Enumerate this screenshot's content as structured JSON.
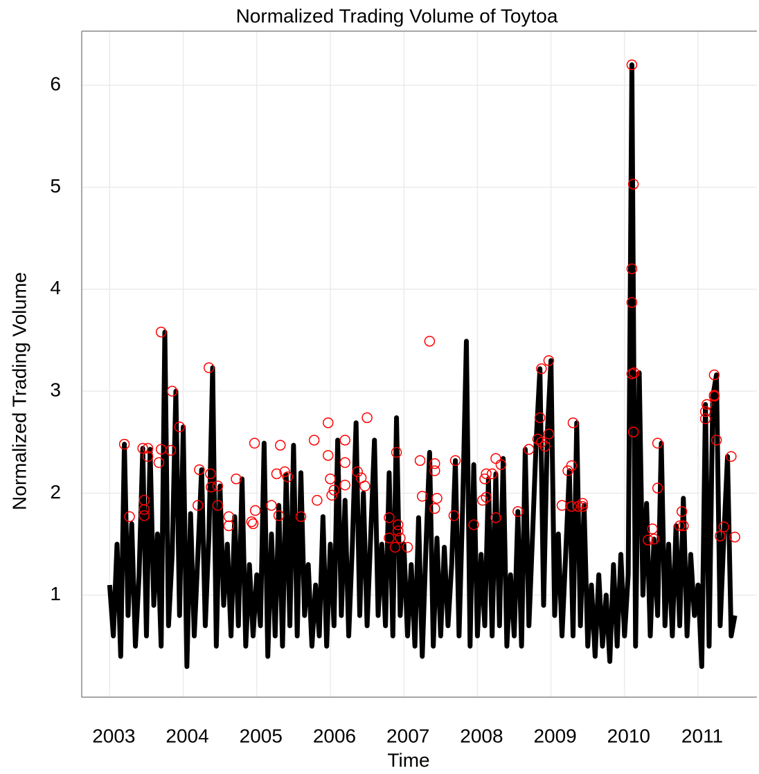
{
  "chart_data": {
    "type": "line",
    "title": "Normalized Trading Volume of Toytoa",
    "xlabel": "Time",
    "ylabel": "Normalized Trading Volume",
    "color": "#000000",
    "x": [
      2003,
      2003.05,
      2003.1,
      2003.15,
      2003.2,
      2003.25,
      2003.3,
      2003.35,
      2003.4,
      2003.45,
      2003.5,
      2003.55,
      2003.6,
      2003.65,
      2003.7,
      2003.75,
      2003.8,
      2003.85,
      2003.9,
      2003.95,
      2004,
      2004.05,
      2004.1,
      2004.15,
      2004.2,
      2004.25,
      2004.3,
      2004.35,
      2004.4,
      2004.45,
      2004.5,
      2004.55,
      2004.6,
      2004.65,
      2004.7,
      2004.75,
      2004.8,
      2004.85,
      2004.9,
      2004.95,
      2005,
      2005.05,
      2005.1,
      2005.15,
      2005.2,
      2005.25,
      2005.3,
      2005.35,
      2005.4,
      2005.45,
      2005.5,
      2005.55,
      2005.6,
      2005.65,
      2005.7,
      2005.75,
      2005.8,
      2005.85,
      2005.9,
      2005.95,
      2006,
      2006.05,
      2006.1,
      2006.15,
      2006.2,
      2006.25,
      2006.3,
      2006.35,
      2006.4,
      2006.45,
      2006.5,
      2006.55,
      2006.6,
      2006.65,
      2006.7,
      2006.75,
      2006.8,
      2006.85,
      2006.9,
      2006.95,
      2007,
      2007.05,
      2007.1,
      2007.15,
      2007.2,
      2007.25,
      2007.3,
      2007.35,
      2007.4,
      2007.45,
      2007.5,
      2007.55,
      2007.6,
      2007.65,
      2007.7,
      2007.75,
      2007.8,
      2007.85,
      2007.9,
      2007.95,
      2008,
      2008.05,
      2008.1,
      2008.15,
      2008.2,
      2008.25,
      2008.3,
      2008.35,
      2008.4,
      2008.45,
      2008.5,
      2008.55,
      2008.6,
      2008.65,
      2008.7,
      2008.75,
      2008.8,
      2008.85,
      2008.9,
      2008.95,
      2009,
      2009.05,
      2009.1,
      2009.15,
      2009.2,
      2009.25,
      2009.3,
      2009.35,
      2009.4,
      2009.45,
      2009.5,
      2009.55,
      2009.6,
      2009.65,
      2009.7,
      2009.75,
      2009.8,
      2009.85,
      2009.9,
      2009.95,
      2010,
      2010.05,
      2010.1,
      2010.15,
      2010.2,
      2010.25,
      2010.3,
      2010.35,
      2010.4,
      2010.45,
      2010.5,
      2010.55,
      2010.6,
      2010.65,
      2010.7,
      2010.75,
      2010.8,
      2010.85,
      2010.9,
      2010.95,
      2011,
      2011.05,
      2011.1,
      2011.15,
      2011.2,
      2011.25,
      2011.3,
      2011.35,
      2011.4,
      2011.45,
      2011.5
    ],
    "values": [
      1.1,
      0.6,
      1.5,
      0.4,
      2.48,
      0.8,
      1.7,
      0.5,
      1.2,
      2.44,
      0.6,
      2.43,
      0.9,
      1.6,
      0.5,
      3.58,
      0.7,
      1.4,
      3.0,
      0.8,
      2.65,
      0.3,
      1.8,
      0.6,
      1.4,
      2.23,
      0.7,
      1.6,
      3.23,
      0.5,
      2.07,
      0.9,
      1.5,
      0.6,
      1.77,
      0.7,
      2.14,
      0.5,
      1.3,
      0.6,
      1.2,
      0.7,
      2.49,
      0.4,
      1.6,
      0.6,
      1.88,
      0.5,
      2.18,
      0.7,
      2.47,
      0.6,
      2.2,
      0.8,
      1.3,
      0.5,
      1.1,
      0.6,
      1.77,
      0.5,
      1.5,
      0.7,
      2.52,
      0.8,
      1.93,
      0.6,
      1.5,
      2.69,
      0.8,
      2.0,
      0.7,
      1.6,
      2.52,
      0.8,
      1.5,
      0.7,
      2.2,
      0.6,
      2.74,
      0.8,
      1.5,
      0.6,
      1.3,
      0.5,
      1.76,
      0.4,
      1.47,
      2.4,
      0.5,
      1.56,
      0.6,
      1.47,
      0.7,
      1.3,
      2.32,
      0.6,
      1.9,
      3.49,
      0.5,
      2.28,
      0.6,
      1.4,
      0.7,
      2.14,
      0.6,
      2.19,
      0.7,
      2.34,
      0.5,
      1.2,
      0.6,
      1.82,
      0.5,
      2.43,
      0.7,
      1.6,
      2.53,
      3.22,
      0.9,
      2.58,
      3.3,
      0.8,
      1.6,
      0.6,
      1.4,
      2.22,
      0.6,
      2.69,
      0.7,
      1.88,
      0.5,
      1.1,
      0.4,
      1.2,
      0.5,
      1.0,
      0.35,
      1.3,
      0.5,
      1.4,
      0.6,
      1.2,
      6.2,
      0.5,
      3.18,
      1.0,
      1.9,
      0.6,
      1.55,
      0.8,
      2.49,
      0.7,
      1.5,
      0.6,
      1.68,
      0.7,
      1.95,
      0.6,
      1.4,
      0.8,
      1.1,
      0.3,
      2.87,
      0.5,
      2.95,
      3.16,
      0.7,
      1.57,
      2.36,
      0.6,
      0.8
    ],
    "highlights": {
      "color": "#ff0000",
      "x": [
        2003.2,
        2003.27,
        2003.45,
        2003.47,
        2003.47,
        2003.47,
        2003.52,
        2003.52,
        2003.67,
        2003.7,
        2003.7,
        2003.85,
        2003.83,
        2003.95,
        2004.2,
        2004.22,
        2004.35,
        2004.37,
        2004.38,
        2004.47,
        2004.47,
        2004.62,
        2004.62,
        2004.72,
        2004.93,
        2004.95,
        2004.97,
        2004.98,
        2005.2,
        2005.27,
        2005.3,
        2005.32,
        2005.38,
        2005.42,
        2005.6,
        2005.78,
        2005.82,
        2005.97,
        2005.97,
        2006,
        2006.02,
        2006.05,
        2006.2,
        2006.2,
        2006.2,
        2006.37,
        2006.42,
        2006.47,
        2006.5,
        2006.8,
        2006.8,
        2006.9,
        2006.88,
        2006.92,
        2006.92,
        2006.95,
        2007.05,
        2007.22,
        2007.25,
        2007.35,
        2007.42,
        2007.42,
        2007.45,
        2007.42,
        2007.7,
        2007.68,
        2007.95,
        2008.07,
        2008.1,
        2008.12,
        2008.12,
        2008.2,
        2008.25,
        2008.25,
        2008.32,
        2008.55,
        2008.7,
        2008.82,
        2008.85,
        2008.87,
        2008.87,
        2008.92,
        2008.97,
        2008.97,
        2009.15,
        2009.23,
        2009.28,
        2009.28,
        2009.3,
        2009.37,
        2009.43,
        2009.43,
        2010.1,
        2010.12,
        2010.1,
        2010.1,
        2010.1,
        2010.13,
        2010.12,
        2010.32,
        2010.38,
        2010.4,
        2010.45,
        2010.45,
        2010.75,
        2010.78,
        2010.8,
        2011.1,
        2011.1,
        2011.12,
        2011.22,
        2011.22,
        2011.22,
        2011.25,
        2011.3,
        2011.35,
        2011.45,
        2011.5
      ],
      "values": [
        2.48,
        1.77,
        2.44,
        1.93,
        1.84,
        1.78,
        2.44,
        2.36,
        2.3,
        2.43,
        3.58,
        3.0,
        2.42,
        2.65,
        1.88,
        2.23,
        3.23,
        2.19,
        2.06,
        2.07,
        1.88,
        1.77,
        1.68,
        2.14,
        1.72,
        1.7,
        2.49,
        1.83,
        1.88,
        2.19,
        1.78,
        2.47,
        2.21,
        2.16,
        1.77,
        2.52,
        1.93,
        2.69,
        2.37,
        2.14,
        1.98,
        2.03,
        2.52,
        2.3,
        2.08,
        2.21,
        2.15,
        2.07,
        2.74,
        1.76,
        1.56,
        2.4,
        1.47,
        1.69,
        1.63,
        1.56,
        1.47,
        2.32,
        1.97,
        3.49,
        2.29,
        2.22,
        1.95,
        1.85,
        2.32,
        1.78,
        1.69,
        1.93,
        2.14,
        2.19,
        1.96,
        2.19,
        2.34,
        1.76,
        2.28,
        1.82,
        2.43,
        2.53,
        2.74,
        2.5,
        3.22,
        2.46,
        2.58,
        3.3,
        1.88,
        2.22,
        2.27,
        1.87,
        2.69,
        1.87,
        1.9,
        1.87,
        6.2,
        5.03,
        4.2,
        3.87,
        3.17,
        3.18,
        2.6,
        1.54,
        1.65,
        1.55,
        2.49,
        2.05,
        1.68,
        1.82,
        1.68,
        2.8,
        2.73,
        2.87,
        3.16,
        2.96,
        2.95,
        2.52,
        1.58,
        1.67,
        2.36,
        1.57
      ]
    },
    "xlim": [
      2002.62,
      2011.8
    ],
    "ylim": [
      0,
      6.53
    ],
    "xticks": [
      2003,
      2004,
      2005,
      2006,
      2007,
      2008,
      2009,
      2010,
      2011
    ],
    "yticks": [
      1,
      2,
      3,
      4,
      5,
      6
    ],
    "grid": true
  }
}
